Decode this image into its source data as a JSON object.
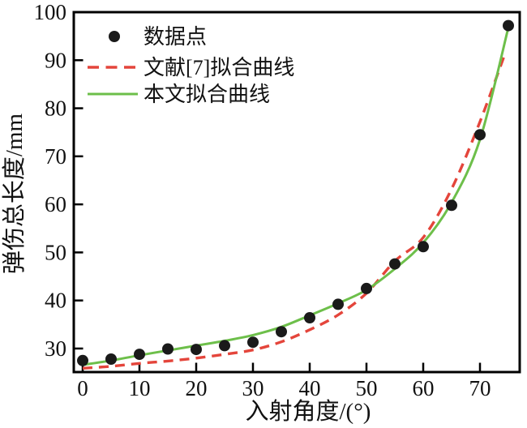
{
  "figure": {
    "background": "#ffffff",
    "axis_color": "#000000"
  },
  "chart_data": {
    "type": "scatter",
    "title": "",
    "xlabel": "入射角度/(°)",
    "ylabel": "弹伤总长度/mm",
    "xlim": [
      -1.57,
      77.0
    ],
    "ylim": [
      25.1,
      100
    ],
    "xticks": [
      0,
      10,
      20,
      30,
      40,
      50,
      60,
      70
    ],
    "yticks": [
      30,
      40,
      50,
      60,
      70,
      80,
      90,
      100
    ],
    "grid": false,
    "legend": {
      "position": "upper-left",
      "entries": [
        {
          "label": "数据点",
          "swatch": "dot",
          "color": "#1a1a1a"
        },
        {
          "label": "文献[7]拟合曲线",
          "swatch": "dashed-line",
          "color": "#e4453b"
        },
        {
          "label": "本文拟合曲线",
          "swatch": "solid-line",
          "color": "#6dbf4a"
        }
      ]
    },
    "scatter": {
      "label": "数据点",
      "color": "#1a1a1a",
      "marker": "circle",
      "points": [
        [
          0,
          27.5
        ],
        [
          5,
          27.8
        ],
        [
          10,
          28.8
        ],
        [
          15,
          29.9
        ],
        [
          20,
          29.8
        ],
        [
          25,
          30.6
        ],
        [
          30,
          31.3
        ],
        [
          35,
          33.5
        ],
        [
          40,
          36.4
        ],
        [
          45,
          39.2
        ],
        [
          50,
          42.5
        ],
        [
          55,
          47.6
        ],
        [
          60,
          51.2
        ],
        [
          65,
          59.8
        ],
        [
          70,
          74.5
        ],
        [
          75,
          97.2
        ]
      ]
    },
    "series": [
      {
        "label": "文献[7]拟合曲线",
        "color": "#e4453b",
        "style": "dashed",
        "points": [
          [
            0,
            25.9
          ],
          [
            5,
            26.3
          ],
          [
            10,
            26.9
          ],
          [
            15,
            27.4
          ],
          [
            20,
            28.0
          ],
          [
            25,
            28.8
          ],
          [
            30,
            29.7
          ],
          [
            35,
            31.4
          ],
          [
            40,
            33.9
          ],
          [
            45,
            37.0
          ],
          [
            50,
            41.5
          ],
          [
            55,
            48.2
          ],
          [
            60,
            53.1
          ],
          [
            65,
            63.2
          ],
          [
            70,
            77.2
          ],
          [
            74.3,
            91.0
          ]
        ]
      },
      {
        "label": "本文拟合曲线",
        "color": "#6dbf4a",
        "style": "solid",
        "points": [
          [
            0,
            26.6
          ],
          [
            5,
            27.5
          ],
          [
            10,
            28.6
          ],
          [
            15,
            29.6
          ],
          [
            20,
            30.6
          ],
          [
            25,
            31.6
          ],
          [
            30,
            32.8
          ],
          [
            35,
            34.5
          ],
          [
            40,
            36.9
          ],
          [
            45,
            39.4
          ],
          [
            50,
            42.2
          ],
          [
            55,
            46.6
          ],
          [
            60,
            52.0
          ],
          [
            65,
            60.4
          ],
          [
            70,
            73.5
          ],
          [
            75,
            96.8
          ]
        ]
      }
    ]
  }
}
